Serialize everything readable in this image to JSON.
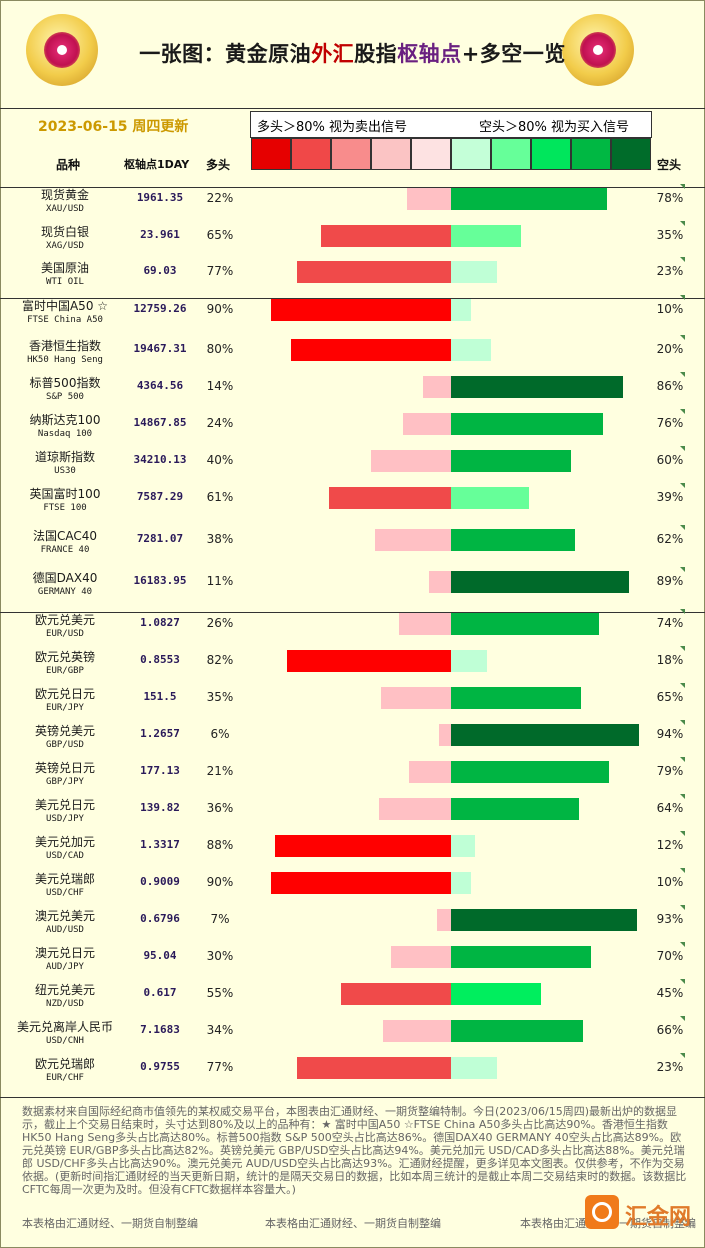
{
  "header": {
    "title_1": "一张图：黄金原油",
    "title_2": "外汇",
    "title_3": "股指",
    "title_4": "枢轴点",
    "title_5": "+多空一览",
    "date": "2023-06-15 周四更新",
    "legend_long": "多头＞80% 视为卖出信号",
    "legend_short": "空头＞80% 视为买入信号",
    "swatch_colors": [
      "#e60000",
      "#f04848",
      "#f88c8c",
      "#fbc4c4",
      "#fde2e2",
      "#c4ffd8",
      "#66ff99",
      "#00e65c",
      "#00b843",
      "#006c2a"
    ],
    "col_name": "品种",
    "col_pivot": "枢轴点1DAY",
    "col_long": "多头",
    "col_short": "空头"
  },
  "chart_data": {
    "type": "bar",
    "categories": [
      "现货黄金 XAU/USD",
      "现货白银 XAG/USD",
      "美国原油 WTI OIL",
      "富时中国A50 ☆ FTSE China A50",
      "香港恒生指数 HK50 Hang Seng",
      "标普500指数 S&P 500",
      "纳斯达克100 Nasdaq 100",
      "道琼斯指数 US30",
      "英国富时100 FTSE 100",
      "法国CAC40 FRANCE 40",
      "德国DAX40 GERMANY 40",
      "欧元兑美元 EUR/USD",
      "欧元兑英镑 EUR/GBP",
      "欧元兑日元 EUR/JPY",
      "英镑兑美元 GBP/USD",
      "英镑兑日元 GBP/JPY",
      "美元兑日元 USD/JPY",
      "美元兑加元 USD/CAD",
      "美元兑瑞郎 USD/CHF",
      "澳元兑美元 AUD/USD",
      "澳元兑日元 AUD/JPY",
      "纽元兑美元 NZD/USD",
      "美元兑离岸人民币 USD/CNH",
      "欧元兑瑞郎 EUR/CHF"
    ],
    "series": [
      {
        "name": "多头",
        "values": [
          22,
          65,
          77,
          90,
          80,
          14,
          24,
          40,
          61,
          38,
          11,
          26,
          82,
          35,
          6,
          21,
          36,
          88,
          90,
          7,
          30,
          55,
          34,
          77
        ]
      },
      {
        "name": "空头",
        "values": [
          78,
          35,
          23,
          10,
          20,
          86,
          76,
          60,
          39,
          62,
          89,
          74,
          18,
          65,
          94,
          79,
          64,
          12,
          10,
          93,
          70,
          45,
          66,
          23
        ]
      }
    ]
  },
  "rows": [
    {
      "cn": "现货黄金",
      "en": "XAU/USD",
      "pivot": "1961.35",
      "long": "22%",
      "short": "78%"
    },
    {
      "cn": "现货白银",
      "en": "XAG/USD",
      "pivot": "23.961",
      "long": "65%",
      "short": "35%"
    },
    {
      "cn": "美国原油",
      "en": "WTI OIL",
      "pivot": "69.03",
      "long": "77%",
      "short": "23%"
    },
    {
      "cn": "富时中国A50 ☆",
      "en": "FTSE China A50",
      "pivot": "12759.26",
      "long": "90%",
      "short": "10%"
    },
    {
      "cn": "香港恒生指数",
      "en": "HK50 Hang Seng",
      "pivot": "19467.31",
      "long": "80%",
      "short": "20%"
    },
    {
      "cn": "标普500指数",
      "en": "S&P 500",
      "pivot": "4364.56",
      "long": "14%",
      "short": "86%"
    },
    {
      "cn": "纳斯达克100",
      "en": "Nasdaq 100",
      "pivot": "14867.85",
      "long": "24%",
      "short": "76%"
    },
    {
      "cn": "道琼斯指数",
      "en": "US30",
      "pivot": "34210.13",
      "long": "40%",
      "short": "60%"
    },
    {
      "cn": "英国富时100",
      "en": "FTSE 100",
      "pivot": "7587.29",
      "long": "61%",
      "short": "39%"
    },
    {
      "cn": "法国CAC40",
      "en": "FRANCE 40",
      "pivot": "7281.07",
      "long": "38%",
      "short": "62%"
    },
    {
      "cn": "德国DAX40",
      "en": "GERMANY 40",
      "pivot": "16183.95",
      "long": "11%",
      "short": "89%"
    },
    {
      "cn": "欧元兑美元",
      "en": "EUR/USD",
      "pivot": "1.0827",
      "long": "26%",
      "short": "74%"
    },
    {
      "cn": "欧元兑英镑",
      "en": "EUR/GBP",
      "pivot": "0.8553",
      "long": "82%",
      "short": "18%"
    },
    {
      "cn": "欧元兑日元",
      "en": "EUR/JPY",
      "pivot": "151.5",
      "long": "35%",
      "short": "65%"
    },
    {
      "cn": "英镑兑美元",
      "en": "GBP/USD",
      "pivot": "1.2657",
      "long": "6%",
      "short": "94%"
    },
    {
      "cn": "英镑兑日元",
      "en": "GBP/JPY",
      "pivot": "177.13",
      "long": "21%",
      "short": "79%"
    },
    {
      "cn": "美元兑日元",
      "en": "USD/JPY",
      "pivot": "139.82",
      "long": "36%",
      "short": "64%"
    },
    {
      "cn": "美元兑加元",
      "en": "USD/CAD",
      "pivot": "1.3317",
      "long": "88%",
      "short": "12%"
    },
    {
      "cn": "美元兑瑞郎",
      "en": "USD/CHF",
      "pivot": "0.9009",
      "long": "90%",
      "short": "10%"
    },
    {
      "cn": "澳元兑美元",
      "en": "AUD/USD",
      "pivot": "0.6796",
      "long": "7%",
      "short": "93%"
    },
    {
      "cn": "澳元兑日元",
      "en": "AUD/JPY",
      "pivot": "95.04",
      "long": "30%",
      "short": "70%"
    },
    {
      "cn": "纽元兑美元",
      "en": "NZD/USD",
      "pivot": "0.617",
      "long": "55%",
      "short": "45%"
    },
    {
      "cn": "美元兑离岸人民币",
      "en": "USD/CNH",
      "pivot": "7.1683",
      "long": "34%",
      "short": "66%"
    },
    {
      "cn": "欧元兑瑞郎",
      "en": "EUR/CHF",
      "pivot": "0.9755",
      "long": "77%",
      "short": "23%"
    }
  ],
  "footer": {
    "note": "数据素材来自国际经纪商市值领先的某权威交易平台，本图表由汇通财经、一期货整编特制。今日(2023/06/15周四)最新出炉的数据显示，截止上个交易日结束时，头寸达到80%及以上的品种有：★ 富时中国A50 ☆FTSE China A50多头占比高达90%。香港恒生指数 HK50 Hang Seng多头占比高达80%。标普500指数 S&P 500空头占比高达86%。德国DAX40 GERMANY 40空头占比高达89%。欧元兑英镑 EUR/GBP多头占比高达82%。英镑兑美元 GBP/USD空头占比高达94%。美元兑加元 USD/CAD多头占比高达88%。美元兑瑞郎 USD/CHF多头占比高达90%。澳元兑美元 AUD/USD空头占比高达93%。汇通财经提醒，更多详见本文图表。仅供参考，不作为交易依据。(更新时间指汇通财经的当天更新日期，统计的是隔天交易日的数据，比如本周三统计的是截止本周二交易结束时的数据。该数据比CFTC每周一次更为及时。但没有CFTC数据样本容量大。)",
    "credit": "本表格由汇通财经、一期货自制整编",
    "watermark": "汇金网"
  }
}
